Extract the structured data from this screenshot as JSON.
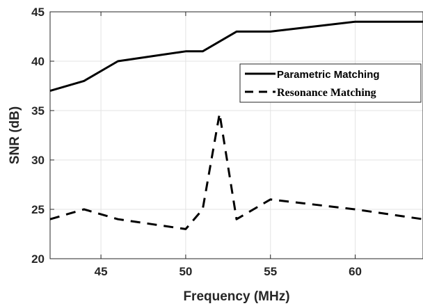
{
  "chart_data": {
    "type": "line",
    "title": "",
    "xlabel": "Frequency (MHz)",
    "ylabel": "SNR (dB)",
    "xlim": [
      42,
      64
    ],
    "ylim": [
      20,
      45
    ],
    "x_ticks": [
      45,
      50,
      55,
      60
    ],
    "x_tick_labels": [
      "45",
      "50",
      "55",
      "60"
    ],
    "y_ticks": [
      20,
      25,
      30,
      35,
      40,
      45
    ],
    "y_tick_labels": [
      "20",
      "25",
      "30",
      "35",
      "40",
      "45"
    ],
    "grid": true,
    "legend_position": "top-right",
    "series": [
      {
        "name": "Parametric Matching",
        "style": "solid",
        "color": "#000000",
        "x": [
          42,
          44,
          46,
          48,
          50,
          51,
          53,
          55,
          58,
          60,
          64
        ],
        "y": [
          37,
          38,
          40,
          40.5,
          41,
          41,
          43,
          43,
          43.6,
          44,
          44
        ]
      },
      {
        "name": "Resonance Matching",
        "style": "dashed",
        "color": "#000000",
        "x": [
          42,
          44,
          46,
          48,
          50,
          51,
          52,
          53,
          55,
          57,
          60,
          64
        ],
        "y": [
          24,
          25,
          24,
          23.5,
          23,
          25,
          34.7,
          24,
          26,
          25.6,
          25,
          24
        ]
      }
    ]
  }
}
